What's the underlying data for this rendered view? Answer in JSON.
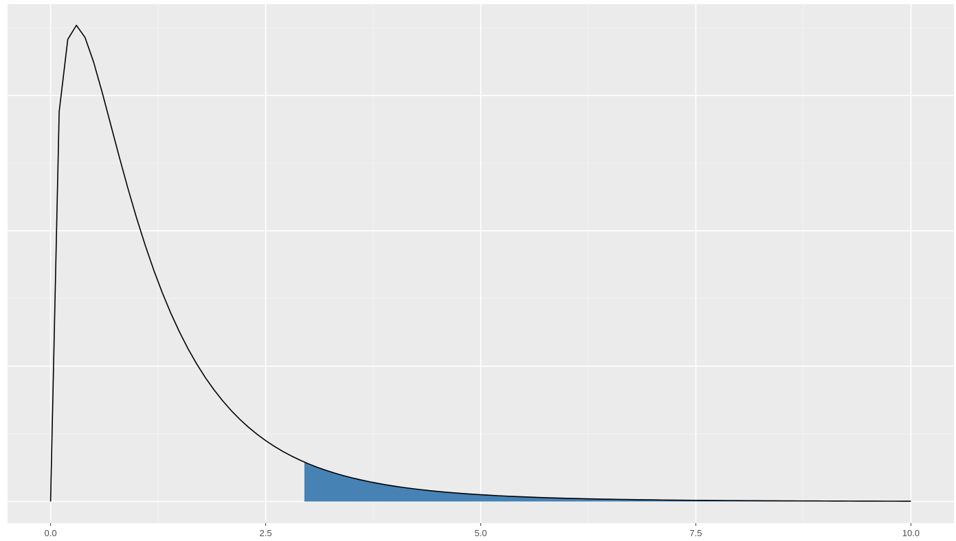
{
  "chart_data": {
    "type": "area",
    "distribution": "F",
    "df1": 3,
    "df2": 14,
    "xlim": [
      -0.5,
      10.5
    ],
    "ylim": [
      -0.032,
      0.735
    ],
    "x_ticks": [
      0,
      2.5,
      5,
      7.5,
      10
    ],
    "x_tick_labels": [
      "0.0",
      "2.5",
      "5.0",
      "7.5",
      "10.0"
    ],
    "x_minor_ticks": [
      1.25,
      3.75,
      6.25,
      8.75
    ],
    "y_major_ticks": [
      0,
      0.2,
      0.4,
      0.6
    ],
    "y_minor_ticks": [
      0.1,
      0.3,
      0.5,
      0.7
    ],
    "y_tick_labels_shown": false,
    "grid": true,
    "series": [
      {
        "x": [
          0,
          0.1,
          0.2,
          0.3,
          0.4,
          0.5,
          0.6,
          0.7,
          0.8,
          0.9,
          1.0,
          1.2,
          1.4,
          1.6,
          1.8,
          2.0,
          2.25,
          2.5,
          2.75,
          3.0,
          3.25,
          3.5,
          3.75,
          4.0,
          4.5,
          5.0,
          5.5,
          6.0,
          6.5,
          7.0,
          7.5,
          8.0,
          8.5,
          9.0,
          9.5,
          10.0
        ],
        "y": [
          0,
          0.569,
          0.685,
          0.713,
          0.702,
          0.674,
          0.636,
          0.594,
          0.55,
          0.506,
          0.463,
          0.385,
          0.317,
          0.26,
          0.213,
          0.175,
          0.135,
          0.104,
          0.081,
          0.064,
          0.05,
          0.04,
          0.031,
          0.025,
          0.016,
          0.0105,
          0.007,
          0.0048,
          0.0033,
          0.0023,
          0.0016,
          0.0012,
          0.0009,
          0.0006,
          0.0005,
          0.0004
        ]
      }
    ],
    "shaded_region": {
      "from": 2.95,
      "to": 10.0
    },
    "colors": {
      "panel_background": "#ebebeb",
      "grid_major": "#ffffff",
      "grid_minor": "#f5f5f5",
      "curve": "#000000",
      "shade": "#4682b4"
    }
  }
}
